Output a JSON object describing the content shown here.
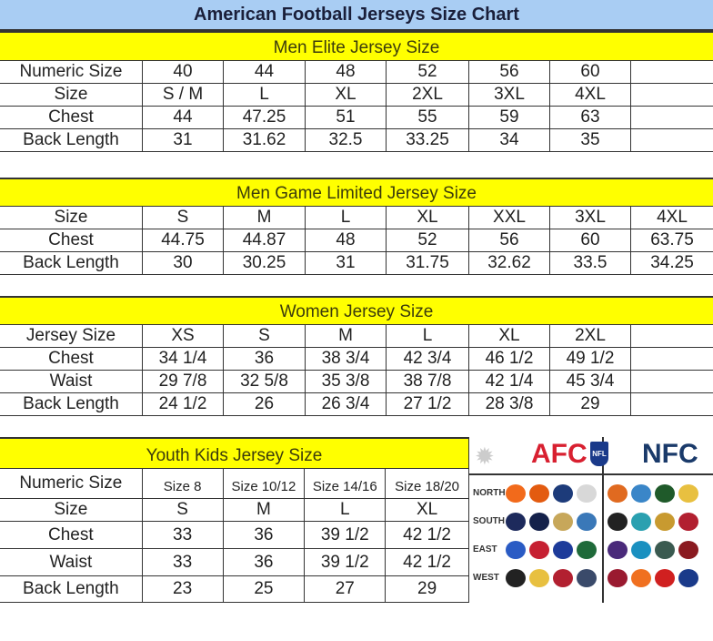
{
  "title": "American Football Jerseys Size Chart",
  "sections": [
    {
      "id": "men-elite",
      "header": "Men Elite Jersey Size",
      "rows": [
        [
          "Numeric Size",
          "40",
          "44",
          "48",
          "52",
          "56",
          "60",
          ""
        ],
        [
          "Size",
          "S / M",
          "L",
          "XL",
          "2XL",
          "3XL",
          "4XL",
          ""
        ],
        [
          "Chest",
          "44",
          "47.25",
          "51",
          "55",
          "59",
          "63",
          ""
        ],
        [
          "Back Length",
          "31",
          "31.62",
          "32.5",
          "33.25",
          "34",
          "35",
          ""
        ]
      ]
    },
    {
      "id": "men-game-limited",
      "header": "Men Game Limited Jersey Size",
      "rows": [
        [
          "Size",
          "S",
          "M",
          "L",
          "XL",
          "XXL",
          "3XL",
          "4XL"
        ],
        [
          "Chest",
          "44.75",
          "44.87",
          "48",
          "52",
          "56",
          "60",
          "63.75"
        ],
        [
          "Back Length",
          "30",
          "30.25",
          "31",
          "31.75",
          "32.62",
          "33.5",
          "34.25"
        ]
      ]
    },
    {
      "id": "women",
      "header": "Women Jersey Size",
      "rows": [
        [
          "Jersey Size",
          "XS",
          "S",
          "M",
          "L",
          "XL",
          "2XL",
          ""
        ],
        [
          "Chest",
          "34 1/4",
          "36",
          "38 3/4",
          "42 3/4",
          "46 1/2",
          "49 1/2",
          ""
        ],
        [
          "Waist",
          "29 7/8",
          "32 5/8",
          "35 3/8",
          "38 7/8",
          "42 1/4",
          "45 3/4",
          ""
        ],
        [
          "Back Length",
          "24 1/2",
          "26",
          "26 3/4",
          "27 1/2",
          "28 3/8",
          "29",
          ""
        ]
      ]
    },
    {
      "id": "youth",
      "header": "Youth Kids Jersey Size",
      "rows": [
        [
          "Numeric Size",
          "Size 8",
          "Size 10/12",
          "Size 14/16",
          "Size 18/20"
        ],
        [
          "Size",
          "S",
          "M",
          "L",
          "XL"
        ],
        [
          "Chest",
          "33",
          "36",
          "39 1/2",
          "42 1/2"
        ],
        [
          "Waist",
          "33",
          "36",
          "39 1/2",
          "42 1/2"
        ],
        [
          "Back Length",
          "23",
          "25",
          "27",
          "29"
        ]
      ]
    }
  ],
  "logos": {
    "conferences": [
      "AFC",
      "NFL",
      "NFC"
    ],
    "divisions": [
      "NORTH",
      "SOUTH",
      "EAST",
      "WEST"
    ],
    "afc_colors": [
      [
        "#f26a1b",
        "#e35b10",
        "#1d3b7a",
        "#d8d8d8"
      ],
      [
        "#1d2a5c",
        "#14214a",
        "#c7a75a",
        "#3a78b8"
      ],
      [
        "#2a5bc4",
        "#c62032",
        "#1d3b9a",
        "#1f6a3a"
      ],
      [
        "#222222",
        "#e8c040",
        "#b22030",
        "#3a4a6a"
      ]
    ],
    "nfc_colors": [
      [
        "#e06a20",
        "#3a86c8",
        "#1f5a2a",
        "#e8c040"
      ],
      [
        "#222222",
        "#2aa0b0",
        "#c89a30",
        "#b22030"
      ],
      [
        "#4a2a7a",
        "#1a90c0",
        "#3a5a50",
        "#8a1a20"
      ],
      [
        "#9a1a30",
        "#f07020",
        "#d02020",
        "#1a3a8a"
      ]
    ]
  },
  "colors": {
    "title_bg": "#a9cdf3",
    "section_header_bg": "#ffff00"
  }
}
